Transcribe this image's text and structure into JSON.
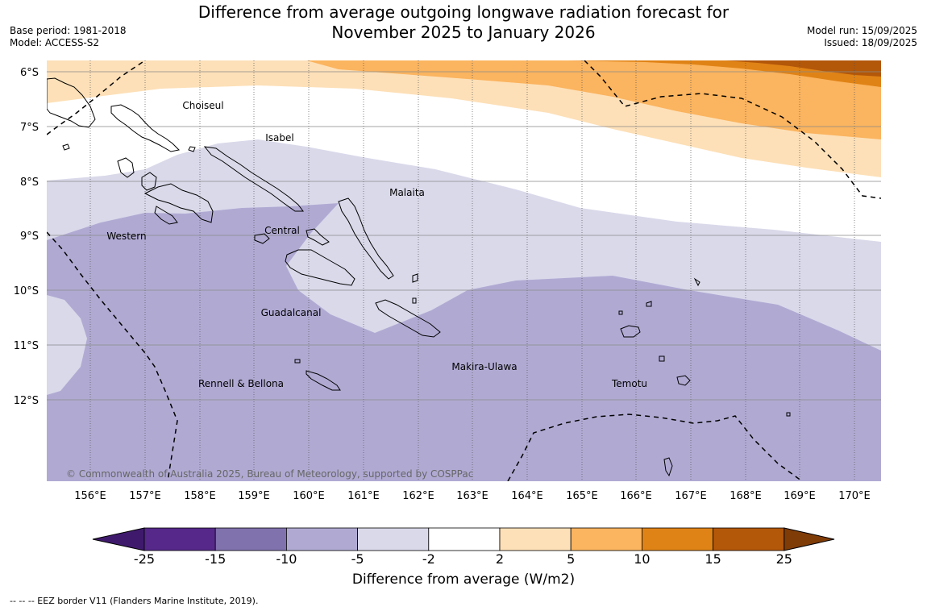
{
  "title_line1": "Difference from average outgoing longwave radiation forecast for",
  "title_line2": "November 2025 to January 2026",
  "meta_left": {
    "base_period": "Base period: 1981-2018",
    "model": "Model: ACCESS-S2"
  },
  "meta_right": {
    "model_run": "Model run: 15/09/2025",
    "issued": "Issued: 18/09/2025"
  },
  "lat_labels": [
    "6°S",
    "7°S",
    "8°S",
    "9°S",
    "10°S",
    "11°S",
    "12°S"
  ],
  "lon_labels": [
    "156°E",
    "157°E",
    "158°E",
    "159°E",
    "160°E",
    "161°E",
    "162°E",
    "163°E",
    "164°E",
    "165°E",
    "166°E",
    "167°E",
    "168°E",
    "169°E",
    "170°E"
  ],
  "regions": {
    "choiseul": "Choiseul",
    "isabel": "Isabel",
    "malaita": "Malaita",
    "western": "Western",
    "central": "Central",
    "guadalcanal": "Guadalcanal",
    "makira": "Makira-Ulawa",
    "rennell": "Rennell & Bellona",
    "temotu": "Temotu"
  },
  "copyright": "© Commonwealth of Australia 2025, Bureau of Meteorology, supported by COSPPac",
  "colorbar": {
    "ticks": [
      "-25",
      "-15",
      "-10",
      "-5",
      "-2",
      "2",
      "5",
      "10",
      "15",
      "25"
    ],
    "colors": [
      "#3f1a6c",
      "#55288a",
      "#8072ad",
      "#b0aad3",
      "#d9d9ea",
      "#ffffff",
      "#fde0b8",
      "#fbb45f",
      "#e08316",
      "#b35709",
      "#7f3c07"
    ],
    "label": "Difference from average (W/m2)"
  },
  "footnote": "--  --  -- EEZ border V11 (Flanders Marine Institute, 2019)."
}
